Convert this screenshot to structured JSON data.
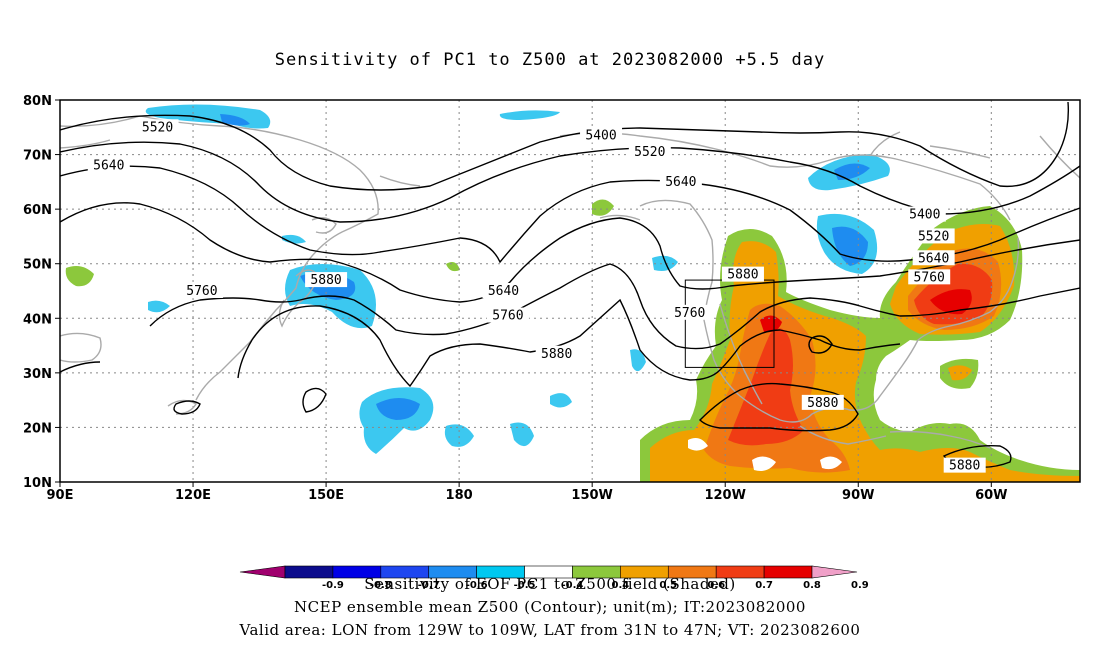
{
  "title": "Sensitivity of PC1 to Z500 at 2023082000 +5.5 day",
  "lat_ticks": [
    {
      "lat": 80,
      "label": "80N"
    },
    {
      "lat": 70,
      "label": "70N"
    },
    {
      "lat": 60,
      "label": "60N"
    },
    {
      "lat": 50,
      "label": "50N"
    },
    {
      "lat": 40,
      "label": "40N"
    },
    {
      "lat": 30,
      "label": "30N"
    },
    {
      "lat": 20,
      "label": "20N"
    },
    {
      "lat": 10,
      "label": "10N"
    }
  ],
  "lon_ticks": [
    {
      "lon": 90,
      "label": "90E"
    },
    {
      "lon": 120,
      "label": "120E"
    },
    {
      "lon": 150,
      "label": "150E"
    },
    {
      "lon": 180,
      "label": "180"
    },
    {
      "lon": 210,
      "label": "150W"
    },
    {
      "lon": 240,
      "label": "120W"
    },
    {
      "lon": 270,
      "label": "90W"
    },
    {
      "lon": 300,
      "label": "60W"
    }
  ],
  "map_extent": {
    "lon_min": 90,
    "lon_max": 320,
    "lat_min": 10,
    "lat_max": 80
  },
  "contour_labels": [
    {
      "text": "5520",
      "lon": 112,
      "lat": 75
    },
    {
      "text": "5400",
      "lon": 212,
      "lat": 73.5
    },
    {
      "text": "5520",
      "lon": 223,
      "lat": 70.5
    },
    {
      "text": "5640",
      "lon": 101,
      "lat": 68
    },
    {
      "text": "5640",
      "lon": 230,
      "lat": 65
    },
    {
      "text": "5400",
      "lon": 285,
      "lat": 59
    },
    {
      "text": "5520",
      "lon": 287,
      "lat": 55
    },
    {
      "text": "5640",
      "lon": 287,
      "lat": 51
    },
    {
      "text": "5760",
      "lon": 122,
      "lat": 45
    },
    {
      "text": "5880",
      "lon": 150,
      "lat": 47
    },
    {
      "text": "5640",
      "lon": 190,
      "lat": 45
    },
    {
      "text": "5760",
      "lon": 191,
      "lat": 40.5
    },
    {
      "text": "5760",
      "lon": 232,
      "lat": 41
    },
    {
      "text": "5880",
      "lon": 244,
      "lat": 48
    },
    {
      "text": "5760",
      "lon": 286,
      "lat": 47.5
    },
    {
      "text": "5880",
      "lon": 202,
      "lat": 33.5
    },
    {
      "text": "5880",
      "lon": 262,
      "lat": 24.5
    },
    {
      "text": "5880",
      "lon": 294,
      "lat": 13
    }
  ],
  "colorbar": {
    "colors": [
      "#a0006e",
      "#0c0c8c",
      "#0000e6",
      "#1e46f0",
      "#1e8cf0",
      "#00c8f0",
      "#ffffff",
      "#8cc83c",
      "#f0a000",
      "#f07814",
      "#f03c14",
      "#e60000",
      "#f0a0c8"
    ],
    "labels": [
      "-0.9",
      "-0.8",
      "-0.7",
      "-0.6",
      "-0.5",
      "-0.4",
      "0.4",
      "0.5",
      "0.6",
      "0.7",
      "0.8",
      "0.9"
    ]
  },
  "footer": {
    "line1": "Sensitivity of EOF PC1 to Z500 field (Shaded)",
    "line2": "NCEP ensemble mean Z500 (Contour); unit(m); IT:2023082000",
    "line3": "Valid area: LON from 129W to 109W, LAT from 31N to 47N; VT: 2023082600"
  },
  "valid_box": {
    "lon_min": 231,
    "lon_max": 251,
    "lat_min": 31,
    "lat_max": 47
  },
  "colors": {
    "land": "#aaaaaa",
    "blue_light": "#3cc8f0",
    "blue_mid": "#1e8cf0",
    "green": "#8cc83c",
    "orange": "#f0a000",
    "red": "#f03c14"
  }
}
